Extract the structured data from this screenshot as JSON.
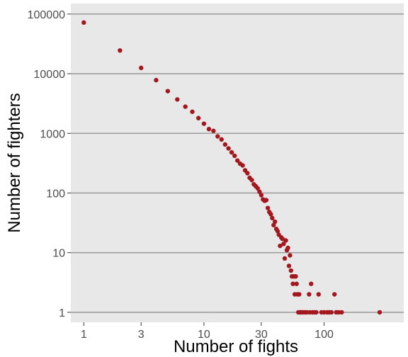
{
  "chart_data": {
    "type": "scatter",
    "xlabel": "Number of fights",
    "ylabel": "Number of fighters",
    "x_scale": "log",
    "y_scale": "log",
    "xlim": [
      0.78,
      460
    ],
    "ylim": [
      0.68,
      150000
    ],
    "x_ticks": [
      1,
      3,
      10,
      30,
      100
    ],
    "x_tick_labels": [
      "1",
      "3",
      "10",
      "30",
      "100"
    ],
    "y_ticks": [
      1,
      10,
      100,
      1000,
      10000,
      100000
    ],
    "y_tick_labels": [
      "1",
      "10",
      "100",
      "1000",
      "10000",
      "100000"
    ],
    "grid": "horizontal major",
    "colors": {
      "panel": "#e8e8e8",
      "grid": "#9e9e9e",
      "point": "#a3171e"
    },
    "points": [
      [
        1,
        72000
      ],
      [
        2,
        24500
      ],
      [
        3,
        12500
      ],
      [
        4,
        7800
      ],
      [
        5,
        5100
      ],
      [
        6,
        3700
      ],
      [
        7,
        2800
      ],
      [
        8,
        2300
      ],
      [
        9,
        1800
      ],
      [
        10,
        1450
      ],
      [
        11,
        1180
      ],
      [
        12,
        1100
      ],
      [
        13,
        890
      ],
      [
        14,
        790
      ],
      [
        15,
        650
      ],
      [
        16,
        560
      ],
      [
        17,
        480
      ],
      [
        18,
        420
      ],
      [
        19,
        350
      ],
      [
        20,
        310
      ],
      [
        21,
        290
      ],
      [
        22,
        240
      ],
      [
        23,
        215
      ],
      [
        24,
        180
      ],
      [
        25,
        165
      ],
      [
        26,
        140
      ],
      [
        27,
        130
      ],
      [
        28,
        120
      ],
      [
        29,
        105
      ],
      [
        30,
        92
      ],
      [
        31,
        78
      ],
      [
        32,
        74
      ],
      [
        33,
        76
      ],
      [
        34,
        56
      ],
      [
        35,
        48
      ],
      [
        36,
        44
      ],
      [
        37,
        38
      ],
      [
        38,
        29
      ],
      [
        39,
        33
      ],
      [
        40,
        25
      ],
      [
        41,
        23
      ],
      [
        42,
        20
      ],
      [
        43,
        13
      ],
      [
        44,
        18
      ],
      [
        45,
        17
      ],
      [
        46,
        14
      ],
      [
        47,
        8
      ],
      [
        48,
        16
      ],
      [
        49,
        11
      ],
      [
        50,
        12
      ],
      [
        51,
        6
      ],
      [
        52,
        9
      ],
      [
        53,
        5
      ],
      [
        54,
        4
      ],
      [
        55,
        3
      ],
      [
        56,
        4
      ],
      [
        57,
        2
      ],
      [
        58,
        4
      ],
      [
        59,
        3
      ],
      [
        60,
        2
      ],
      [
        61,
        1
      ],
      [
        62,
        2
      ],
      [
        63,
        1
      ],
      [
        64,
        1
      ],
      [
        65,
        1
      ],
      [
        66,
        1
      ],
      [
        68,
        1
      ],
      [
        70,
        1
      ],
      [
        72,
        1
      ],
      [
        75,
        2
      ],
      [
        76,
        1
      ],
      [
        78,
        3
      ],
      [
        80,
        1
      ],
      [
        83,
        1
      ],
      [
        86,
        1
      ],
      [
        90,
        2
      ],
      [
        95,
        1
      ],
      [
        100,
        1
      ],
      [
        106,
        1
      ],
      [
        110,
        1
      ],
      [
        115,
        1
      ],
      [
        122,
        2
      ],
      [
        126,
        1
      ],
      [
        132,
        1
      ],
      [
        140,
        1
      ],
      [
        290,
        1
      ]
    ]
  }
}
